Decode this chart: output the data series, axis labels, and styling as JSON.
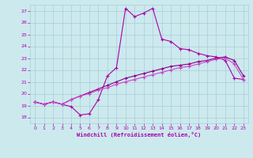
{
  "xlabel": "Windchill (Refroidissement éolien,°C)",
  "xlim": [
    -0.5,
    23.5
  ],
  "ylim": [
    17.5,
    27.5
  ],
  "xticks": [
    0,
    1,
    2,
    3,
    4,
    5,
    6,
    7,
    8,
    9,
    10,
    11,
    12,
    13,
    14,
    15,
    16,
    17,
    18,
    19,
    20,
    21,
    22,
    23
  ],
  "yticks": [
    18,
    19,
    20,
    21,
    22,
    23,
    24,
    25,
    26,
    27
  ],
  "background_color": "#cce9ee",
  "grid_color": "#aacdd8",
  "line_color1": "#aa00aa",
  "line_color2": "#880088",
  "line_color3": "#cc44cc",
  "series1_x": [
    0,
    1,
    2,
    3,
    4,
    5,
    6,
    7,
    8,
    9,
    10,
    11,
    12,
    13,
    14,
    15,
    16,
    17,
    18,
    19,
    20,
    21,
    22,
    23
  ],
  "series1_y": [
    19.3,
    19.1,
    19.3,
    19.1,
    18.9,
    18.2,
    18.3,
    19.5,
    21.5,
    22.2,
    27.2,
    26.5,
    26.8,
    27.2,
    24.6,
    24.4,
    23.8,
    23.7,
    23.4,
    23.2,
    23.1,
    22.8,
    21.3,
    21.2
  ],
  "series2_x": [
    0,
    1,
    2,
    3,
    4,
    5,
    6,
    7,
    8,
    9,
    10,
    11,
    12,
    13,
    14,
    15,
    16,
    17,
    18,
    19,
    20,
    21,
    22,
    23
  ],
  "series2_y": [
    19.3,
    19.1,
    19.3,
    19.1,
    19.5,
    19.8,
    20.1,
    20.4,
    20.7,
    21.0,
    21.3,
    21.5,
    21.7,
    21.9,
    22.1,
    22.3,
    22.4,
    22.5,
    22.7,
    22.8,
    23.0,
    23.1,
    22.8,
    21.5
  ],
  "series3_x": [
    0,
    1,
    2,
    3,
    4,
    5,
    6,
    7,
    8,
    9,
    10,
    11,
    12,
    13,
    14,
    15,
    16,
    17,
    18,
    19,
    20,
    21,
    22,
    23
  ],
  "series3_y": [
    19.3,
    19.1,
    19.3,
    19.1,
    19.5,
    19.8,
    20.0,
    20.3,
    20.5,
    20.8,
    21.0,
    21.2,
    21.4,
    21.6,
    21.8,
    22.0,
    22.2,
    22.3,
    22.5,
    22.7,
    22.9,
    23.0,
    22.5,
    21.2
  ]
}
